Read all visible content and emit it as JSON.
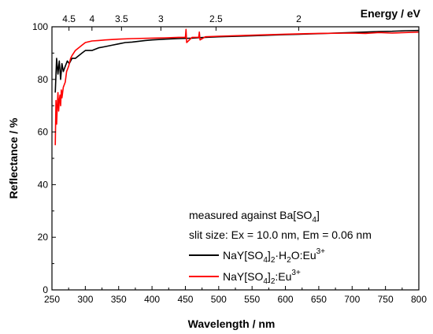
{
  "chart_data": {
    "type": "line",
    "xlabel": "Wavelength / nm",
    "ylabel": "Reflectance / %",
    "top_axis_label": "Energy / eV",
    "xlim": [
      250,
      800
    ],
    "ylim": [
      0,
      100
    ],
    "x_ticks": [
      250,
      300,
      350,
      400,
      450,
      500,
      550,
      600,
      650,
      700,
      750,
      800
    ],
    "y_ticks": [
      0,
      20,
      40,
      60,
      80,
      100
    ],
    "top_ticks": [
      {
        "label": "4.5",
        "ev": 4.5
      },
      {
        "label": "4",
        "ev": 4.0
      },
      {
        "label": "3.5",
        "ev": 3.5
      },
      {
        "label": "3",
        "ev": 3.0
      },
      {
        "label": "2.5",
        "ev": 2.5
      },
      {
        "label": "2",
        "ev": 2.0
      }
    ],
    "grid": false,
    "legend_placement": "bottom-right",
    "annotations": {
      "line1": "measured against Ba[SO",
      "line1_sub": "4",
      "line1_end": "]",
      "line2": "slit size: Ex = 10.0 nm, Em = 0.06 nm"
    },
    "series": [
      {
        "name": "NaY[SO4]2·H2O:Eu3+",
        "legend_parts": {
          "a": "NaY[SO",
          "s1": "4",
          "b": "]",
          "s2": "2",
          "c": "·H",
          "s3": "2",
          "d": "O:Eu",
          "sup": "3+"
        },
        "color": "#000000",
        "x": [
          255,
          257,
          259,
          261,
          263,
          265,
          267,
          270,
          273,
          276,
          280,
          285,
          290,
          295,
          300,
          305,
          310,
          320,
          330,
          340,
          350,
          360,
          370,
          380,
          390,
          400,
          420,
          440,
          460,
          480,
          500,
          550,
          600,
          650,
          700,
          720,
          740,
          760,
          780,
          800
        ],
        "y": [
          75,
          88,
          82,
          87,
          80,
          86,
          83,
          85,
          87,
          86,
          88,
          88,
          89,
          90,
          91,
          91,
          91,
          92,
          92.5,
          93,
          93.5,
          94,
          94.2,
          94.5,
          94.8,
          95,
          95.3,
          95.5,
          95.7,
          96,
          96.2,
          96.6,
          97,
          97.4,
          97.8,
          98,
          98.2,
          98.3,
          98.5,
          98.6
        ]
      },
      {
        "name": "NaY[SO4]2:Eu3+",
        "legend_parts": {
          "a": "NaY[SO",
          "s1": "4",
          "b": "]",
          "s2": "2",
          "c": "",
          "s3": "",
          "d": ":Eu",
          "sup": "3+"
        },
        "color": "#ff0000",
        "x": [
          255,
          256,
          257,
          258,
          259,
          260,
          261,
          262,
          263,
          264,
          265,
          267,
          270,
          272,
          275,
          278,
          280,
          285,
          290,
          295,
          300,
          305,
          310,
          320,
          330,
          350,
          370,
          400,
          420,
          440,
          450,
          451,
          452,
          460,
          470,
          471,
          472,
          480,
          500,
          550,
          600,
          650,
          700,
          720,
          740,
          760,
          780,
          800
        ],
        "y": [
          55,
          72,
          63,
          70,
          75,
          68,
          72,
          74,
          70,
          76,
          73,
          77,
          79,
          83,
          85,
          88,
          89,
          91,
          92,
          93,
          94,
          94.3,
          94.6,
          94.8,
          95,
          95.3,
          95.5,
          95.7,
          95.8,
          96,
          96,
          99,
          94,
          96,
          96,
          98,
          95,
          96.2,
          96.4,
          96.8,
          97.2,
          97.5,
          97.6,
          97.5,
          97.8,
          97.6,
          97.8,
          98
        ]
      }
    ]
  }
}
